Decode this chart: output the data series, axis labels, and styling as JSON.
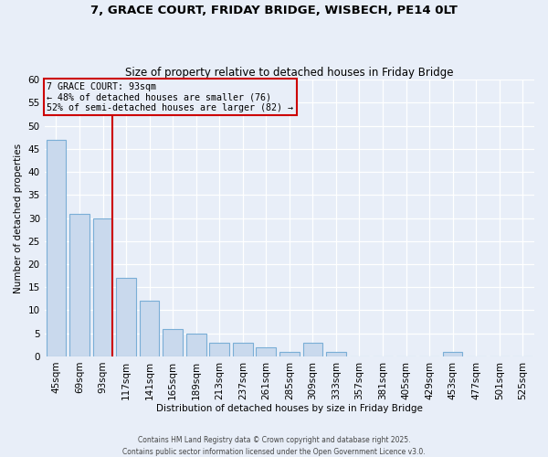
{
  "title": "7, GRACE COURT, FRIDAY BRIDGE, WISBECH, PE14 0LT",
  "subtitle": "Size of property relative to detached houses in Friday Bridge",
  "xlabel": "Distribution of detached houses by size in Friday Bridge",
  "ylabel": "Number of detached properties",
  "bar_color": "#c9d9ed",
  "bar_edge_color": "#7aaed6",
  "background_color": "#e8eef8",
  "categories": [
    "45sqm",
    "69sqm",
    "93sqm",
    "117sqm",
    "141sqm",
    "165sqm",
    "189sqm",
    "213sqm",
    "237sqm",
    "261sqm",
    "285sqm",
    "309sqm",
    "333sqm",
    "357sqm",
    "381sqm",
    "405sqm",
    "429sqm",
    "453sqm",
    "477sqm",
    "501sqm",
    "525sqm"
  ],
  "values": [
    47,
    31,
    30,
    17,
    12,
    6,
    5,
    3,
    3,
    2,
    1,
    3,
    1,
    0,
    0,
    0,
    0,
    1,
    0,
    0,
    0
  ],
  "property_index": 2,
  "property_label": "7 GRACE COURT: 93sqm",
  "annotation_line1": "← 48% of detached houses are smaller (76)",
  "annotation_line2": "52% of semi-detached houses are larger (82) →",
  "vline_color": "#cc0000",
  "annotation_box_edge_color": "#cc0000",
  "ylim": [
    0,
    60
  ],
  "yticks": [
    0,
    5,
    10,
    15,
    20,
    25,
    30,
    35,
    40,
    45,
    50,
    55,
    60
  ],
  "footer1": "Contains HM Land Registry data © Crown copyright and database right 2025.",
  "footer2": "Contains public sector information licensed under the Open Government Licence v3.0."
}
